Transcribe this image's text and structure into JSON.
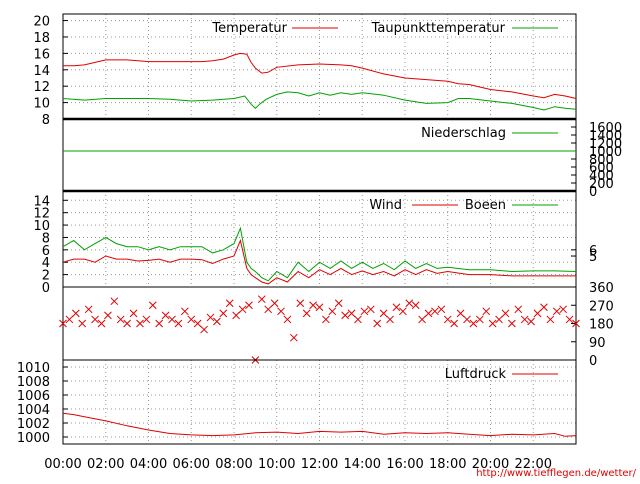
{
  "chart_data": [
    {
      "type": "line",
      "x_ticks": [
        "00:00",
        "02:00",
        "04:00",
        "06:00",
        "08:00",
        "10:00",
        "12:00",
        "14:00",
        "16:00",
        "18:00",
        "20:00",
        "22:00"
      ],
      "y_left_ticks": [
        "8",
        "10",
        "12",
        "14",
        "16",
        "18",
        "20"
      ],
      "ylim": [
        8,
        20.8
      ],
      "grid": true,
      "legend_placement": "top",
      "series": [
        {
          "name": "Temperatur",
          "color": "#e00000",
          "x": [
            0,
            0.5,
            1,
            1.5,
            2,
            2.5,
            3,
            4,
            5,
            6,
            6.5,
            7,
            7.5,
            8,
            8.3,
            8.6,
            8.8,
            9.0,
            9.3,
            9.6,
            10,
            11,
            12,
            13,
            13.5,
            14,
            15,
            16,
            17,
            18,
            18.5,
            19,
            20,
            21,
            22,
            22.5,
            23,
            23.5,
            24
          ],
          "values": [
            14.5,
            14.5,
            14.6,
            14.9,
            15.2,
            15.2,
            15.2,
            15.0,
            15.0,
            15.0,
            15.0,
            15.1,
            15.3,
            15.8,
            16.0,
            15.9,
            14.9,
            14.2,
            13.6,
            13.7,
            14.3,
            14.6,
            14.7,
            14.6,
            14.5,
            14.2,
            13.5,
            13.0,
            12.8,
            12.6,
            12.3,
            12.2,
            11.6,
            11.3,
            10.8,
            10.6,
            11.0,
            10.8,
            10.5
          ]
        },
        {
          "name": "Taupunkttemperatur",
          "color": "#00a000",
          "x": [
            0,
            1,
            2,
            3,
            4,
            5,
            6,
            7,
            8,
            8.5,
            8.8,
            9.0,
            9.2,
            9.5,
            10,
            10.5,
            11,
            11.5,
            12,
            12.5,
            13,
            13.5,
            14,
            15,
            16,
            17,
            18,
            18.5,
            19,
            20,
            21,
            22,
            22.5,
            23,
            23.5,
            24
          ],
          "values": [
            10.5,
            10.3,
            10.5,
            10.5,
            10.5,
            10.4,
            10.2,
            10.3,
            10.5,
            10.8,
            9.8,
            9.3,
            9.8,
            10.4,
            11.0,
            11.3,
            11.2,
            10.8,
            11.2,
            10.9,
            11.2,
            11.0,
            11.2,
            10.9,
            10.3,
            9.9,
            10.0,
            10.5,
            10.5,
            10.2,
            9.9,
            9.4,
            9.1,
            9.5,
            9.3,
            9.2
          ]
        }
      ]
    },
    {
      "type": "line",
      "y_right_ticks": [
        "0",
        "200",
        "400",
        "600",
        "800",
        "1000",
        "1200",
        "1400",
        "1600"
      ],
      "ylim": [
        0,
        1800
      ],
      "grid": false,
      "legend_placement": "top-right",
      "series": [
        {
          "name": "Niederschlag",
          "color": "#00a000",
          "x": [
            0,
            24
          ],
          "values": [
            1000,
            1000
          ]
        }
      ]
    },
    {
      "type": "line",
      "y_left_ticks": [
        "0",
        "2",
        "4",
        "6",
        "8",
        "10",
        "12",
        "14"
      ],
      "y_right_ticks": [
        "5",
        "6"
      ],
      "ylim": [
        0,
        15.5
      ],
      "grid": true,
      "legend_placement": "top-right",
      "series": [
        {
          "name": "Wind",
          "color": "#e00000",
          "x": [
            0,
            0.5,
            1,
            1.5,
            2,
            2.5,
            3,
            3.5,
            4,
            4.5,
            5,
            5.5,
            6,
            6.5,
            7,
            7.5,
            8,
            8.3,
            8.6,
            8.8,
            9,
            9.3,
            9.6,
            10,
            10.5,
            11,
            11.5,
            12,
            12.5,
            13,
            13.5,
            14,
            14.5,
            15,
            15.5,
            16,
            16.5,
            17,
            17.5,
            18,
            19,
            20,
            21,
            22,
            23,
            24
          ],
          "values": [
            4.0,
            4.5,
            4.5,
            4.0,
            5.0,
            4.5,
            4.5,
            4.2,
            4.3,
            4.5,
            4.0,
            4.5,
            4.5,
            4.4,
            3.8,
            4.5,
            5.0,
            7.5,
            3.0,
            2.0,
            1.5,
            0.8,
            0.5,
            1.5,
            0.8,
            2.5,
            1.5,
            2.8,
            2.0,
            3.0,
            2.0,
            2.6,
            2.0,
            2.5,
            1.8,
            2.8,
            2.0,
            2.8,
            2.2,
            2.5,
            2.0,
            2.0,
            1.8,
            1.8,
            1.8,
            1.8
          ]
        },
        {
          "name": "Boeen",
          "color": "#00a000",
          "x": [
            0,
            0.5,
            1,
            1.5,
            2,
            2.5,
            3,
            3.5,
            4,
            4.5,
            5,
            5.5,
            6,
            6.5,
            7,
            7.5,
            8,
            8.3,
            8.6,
            8.8,
            9,
            9.3,
            9.6,
            10,
            10.5,
            11,
            11.5,
            12,
            12.5,
            13,
            13.5,
            14,
            14.5,
            15,
            15.5,
            16,
            16.5,
            17,
            17.5,
            18,
            19,
            20,
            21,
            22,
            23,
            24
          ],
          "values": [
            6.5,
            7.5,
            6.0,
            7.0,
            8.0,
            7.0,
            6.5,
            6.5,
            6.0,
            6.5,
            6.0,
            6.5,
            6.5,
            6.5,
            5.5,
            6.0,
            7.0,
            9.5,
            4.0,
            3.0,
            2.5,
            1.5,
            1.0,
            2.5,
            1.5,
            4.0,
            2.5,
            4.0,
            3.0,
            4.2,
            3.0,
            4.0,
            3.0,
            3.8,
            2.8,
            4.2,
            3.0,
            3.8,
            3.0,
            3.2,
            2.8,
            2.8,
            2.5,
            2.6,
            2.6,
            2.5
          ]
        }
      ]
    },
    {
      "type": "scatter",
      "y_right_ticks": [
        "0",
        "90",
        "180",
        "270",
        "360"
      ],
      "ylim": [
        0,
        360
      ],
      "grid": false,
      "series": [
        {
          "name": "",
          "color": "#e00000",
          "x": [
            0,
            0.3,
            0.6,
            0.9,
            1.2,
            1.5,
            1.8,
            2.1,
            2.4,
            2.7,
            3.0,
            3.3,
            3.6,
            3.9,
            4.2,
            4.5,
            4.8,
            5.1,
            5.4,
            5.7,
            6.0,
            6.3,
            6.6,
            6.9,
            7.2,
            7.5,
            7.8,
            8.1,
            8.4,
            8.7,
            9.0,
            9.3,
            9.6,
            9.9,
            10.2,
            10.5,
            10.8,
            11.1,
            11.4,
            11.7,
            12.0,
            12.3,
            12.6,
            12.9,
            13.2,
            13.5,
            13.8,
            14.1,
            14.4,
            14.7,
            15.0,
            15.3,
            15.6,
            15.9,
            16.2,
            16.5,
            16.8,
            17.1,
            17.4,
            17.7,
            18.0,
            18.3,
            18.6,
            18.9,
            19.2,
            19.5,
            19.8,
            20.1,
            20.4,
            20.7,
            21.0,
            21.3,
            21.6,
            21.9,
            22.2,
            22.5,
            22.8,
            23.1,
            23.4,
            23.7,
            24.0
          ],
          "values": [
            180,
            200,
            230,
            180,
            250,
            200,
            180,
            220,
            290,
            200,
            180,
            230,
            180,
            200,
            270,
            180,
            220,
            200,
            180,
            240,
            200,
            180,
            150,
            210,
            190,
            230,
            280,
            220,
            250,
            270,
            0,
            300,
            250,
            280,
            240,
            200,
            110,
            280,
            230,
            270,
            260,
            200,
            240,
            280,
            220,
            230,
            200,
            240,
            250,
            180,
            230,
            200,
            260,
            240,
            280,
            270,
            200,
            230,
            240,
            250,
            200,
            180,
            230,
            200,
            180,
            200,
            240,
            180,
            200,
            230,
            180,
            250,
            200,
            190,
            230,
            260,
            200,
            240,
            250,
            200,
            180
          ]
        }
      ]
    },
    {
      "type": "line",
      "y_left_ticks": [
        "1000",
        "1002",
        "1004",
        "1006",
        "1008",
        "1010"
      ],
      "ylim": [
        999,
        1011
      ],
      "grid": true,
      "legend_placement": "top-right",
      "series": [
        {
          "name": "Luftdruck",
          "color": "#e00000",
          "x": [
            0,
            0.5,
            1,
            2,
            3,
            4,
            5,
            6,
            7,
            8,
            9,
            10,
            11,
            12,
            13,
            14,
            15,
            16,
            17,
            18,
            19,
            20,
            21,
            22,
            23,
            23.5,
            24
          ],
          "values": [
            1003.4,
            1003.2,
            1002.9,
            1002.3,
            1001.6,
            1001.0,
            1000.5,
            1000.3,
            1000.2,
            1000.3,
            1000.6,
            1000.7,
            1000.5,
            1000.8,
            1000.7,
            1000.8,
            1000.4,
            1000.6,
            1000.5,
            1000.6,
            1000.4,
            1000.2,
            1000.4,
            1000.3,
            1000.5,
            1000.1,
            1000.2
          ]
        }
      ]
    }
  ],
  "credit": "http://www.tiefflegen.de/wetter/"
}
